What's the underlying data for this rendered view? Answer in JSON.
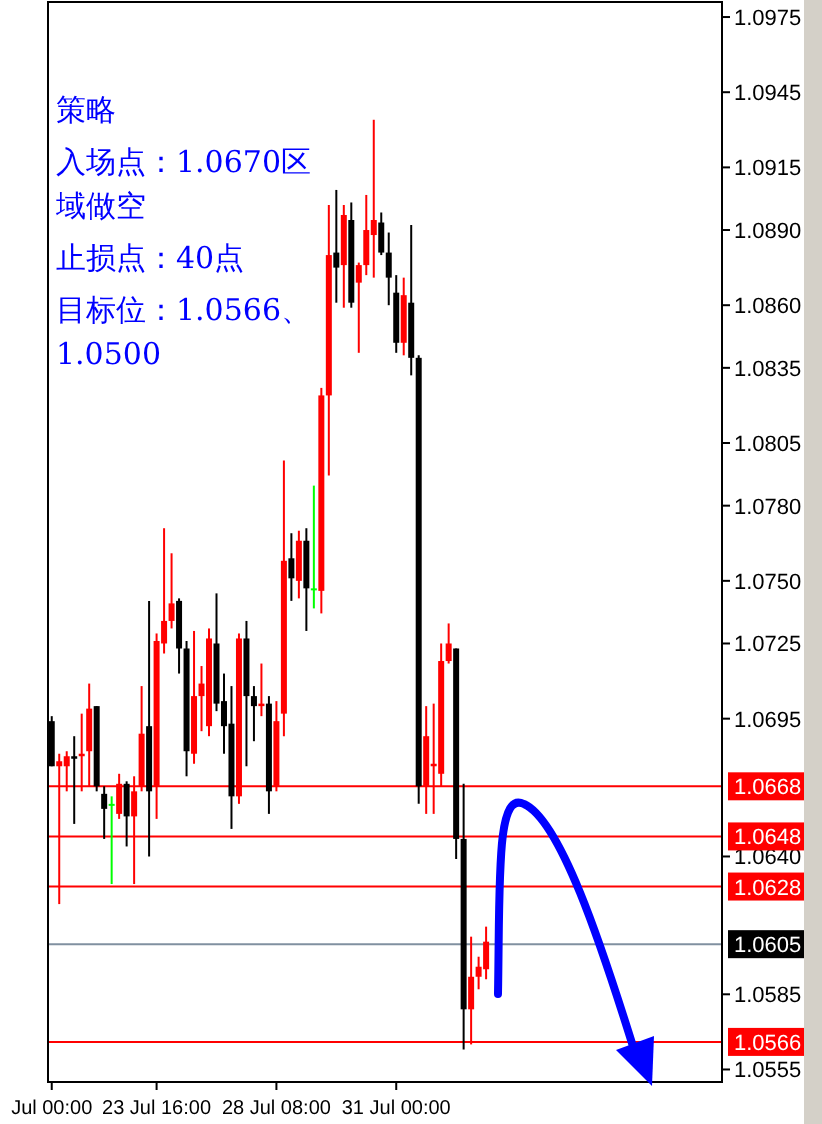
{
  "chart_data": {
    "type": "candlestick",
    "categories": [
      "Jul 00:00",
      null,
      null,
      null,
      null,
      null,
      null,
      null,
      null,
      null,
      null,
      null,
      null,
      null,
      "23 Jul 16:00",
      null,
      null,
      null,
      null,
      null,
      null,
      null,
      null,
      null,
      null,
      null,
      null,
      null,
      null,
      null,
      "28 Jul 08:00",
      null,
      null,
      null,
      null,
      null,
      null,
      null,
      null,
      null,
      null,
      null,
      null,
      null,
      null,
      null,
      "31 Jul 00:00",
      null,
      null,
      null,
      null,
      null,
      null,
      null,
      null,
      null,
      null,
      null,
      null,
      null,
      null,
      null,
      null,
      null,
      null,
      null,
      null,
      null,
      null,
      null,
      null,
      null,
      null,
      null,
      null,
      null,
      null,
      null,
      null,
      null,
      null,
      null,
      null,
      null,
      null,
      null,
      null,
      null,
      null,
      null
    ],
    "ohlc": [
      [
        1.0694,
        1.0696,
        1.0676,
        1.0676
      ],
      [
        1.0676,
        1.0681,
        1.0621,
        1.0678
      ],
      [
        1.0676,
        1.0682,
        1.0666,
        1.068
      ],
      [
        1.068,
        1.0688,
        1.0653,
        1.0679
      ],
      [
        1.068,
        1.0697,
        1.0666,
        1.0681
      ],
      [
        1.0682,
        1.0709,
        1.0668,
        1.0699
      ],
      [
        1.07,
        1.07,
        1.0666,
        1.0668
      ],
      [
        1.0665,
        1.0668,
        1.0647,
        1.0659
      ],
      [
        1.0661,
        1.0664,
        1.0629,
        1.0661
      ],
      [
        1.0657,
        1.0673,
        1.0655,
        1.0669
      ],
      [
        1.0669,
        1.067,
        1.0644,
        1.0656
      ],
      [
        1.0656,
        1.0672,
        1.0629,
        1.0666
      ],
      [
        1.0668,
        1.0708,
        1.0666,
        1.0689
      ],
      [
        1.0692,
        1.0742,
        1.064,
        1.0666
      ],
      [
        1.0668,
        1.0729,
        1.0655,
        1.0726
      ],
      [
        1.0725,
        1.0771,
        1.0721,
        1.0734
      ],
      [
        1.0734,
        1.0761,
        1.0731,
        1.0741
      ],
      [
        1.0742,
        1.0743,
        1.0713,
        1.0723
      ],
      [
        1.0723,
        1.0726,
        1.0672,
        1.0682
      ],
      [
        1.0681,
        1.073,
        1.0677,
        1.0704
      ],
      [
        1.0704,
        1.0716,
        1.069,
        1.0709
      ],
      [
        1.0692,
        1.0731,
        1.0688,
        1.0727
      ],
      [
        1.0725,
        1.0745,
        1.0698,
        1.0701
      ],
      [
        1.0702,
        1.0713,
        1.0681,
        1.0692
      ],
      [
        1.0693,
        1.0708,
        1.0651,
        1.0664
      ],
      [
        1.0664,
        1.0729,
        1.0661,
        1.0727
      ],
      [
        1.0727,
        1.0734,
        1.0676,
        1.0704
      ],
      [
        1.0704,
        1.0708,
        1.0686,
        1.07
      ],
      [
        1.07,
        1.0717,
        1.0696,
        1.0701
      ],
      [
        1.0701,
        1.0704,
        1.0657,
        1.0666
      ],
      [
        1.0668,
        1.0702,
        1.0666,
        1.0694
      ],
      [
        1.0697,
        1.0798,
        1.0688,
        1.0758
      ],
      [
        1.0759,
        1.0769,
        1.0742,
        1.0751
      ],
      [
        1.075,
        1.077,
        1.0743,
        1.0766
      ],
      [
        1.0766,
        1.0771,
        1.073,
        1.0747
      ],
      [
        1.0747,
        1.0788,
        1.0739,
        1.0747
      ],
      [
        1.0746,
        1.0827,
        1.0737,
        1.0824
      ],
      [
        1.0824,
        1.09,
        1.0792,
        1.088
      ],
      [
        1.0881,
        1.0906,
        1.0861,
        1.0875
      ],
      [
        1.0876,
        1.09,
        1.0859,
        1.0896
      ],
      [
        1.0894,
        1.0901,
        1.0859,
        1.0861
      ],
      [
        1.0869,
        1.0877,
        1.0841,
        1.0876
      ],
      [
        1.0876,
        1.0904,
        1.0872,
        1.089
      ],
      [
        1.0888,
        1.0934,
        1.0871,
        1.0894
      ],
      [
        1.0893,
        1.0897,
        1.088,
        1.0881
      ],
      [
        1.0881,
        1.0889,
        1.086,
        1.0871
      ],
      [
        1.0865,
        1.0872,
        1.0841,
        1.0845
      ],
      [
        1.0845,
        1.0871,
        1.084,
        1.0864
      ],
      [
        1.0861,
        1.0892,
        1.0832,
        1.0839
      ],
      [
        1.0839,
        1.084,
        1.0661,
        1.0668
      ],
      [
        1.0668,
        1.07,
        1.0657,
        1.0688
      ],
      [
        1.0676,
        1.0701,
        1.0657,
        1.0677
      ],
      [
        1.0673,
        1.0725,
        1.0668,
        1.0718
      ],
      [
        1.0718,
        1.0733,
        1.0717,
        1.0725
      ],
      [
        1.0723,
        1.0723,
        1.0639,
        1.0647
      ],
      [
        1.0647,
        1.0669,
        1.0563,
        1.0579
      ],
      [
        1.0579,
        1.0608,
        1.0565,
        1.0592
      ],
      [
        1.0592,
        1.06,
        1.0587,
        1.0596
      ],
      [
        1.0595,
        1.0612,
        1.0591,
        1.0606
      ],
      null,
      null,
      null,
      null,
      null,
      null,
      null,
      null,
      null,
      null,
      null,
      null,
      null,
      null,
      null,
      null,
      null,
      null,
      null,
      null,
      null,
      null,
      null,
      null,
      null,
      null,
      null,
      null,
      null,
      null,
      null
    ],
    "colors": [
      "#000000",
      "#ff0000",
      "#ff0000",
      "#000000",
      "#ff0000",
      "#ff0000",
      "#000000",
      "#000000",
      "#00ff00",
      "#ff0000",
      "#000000",
      "#ff0000",
      "#ff0000",
      "#000000",
      "#ff0000",
      "#ff0000",
      "#ff0000",
      "#000000",
      "#000000",
      "#ff0000",
      "#ff0000",
      "#ff0000",
      "#000000",
      "#000000",
      "#000000",
      "#ff0000",
      "#000000",
      "#000000",
      "#ff0000",
      "#000000",
      "#ff0000",
      "#ff0000",
      "#000000",
      "#ff0000",
      "#000000",
      "#00ff00",
      "#ff0000",
      "#ff0000",
      "#000000",
      "#ff0000",
      "#000000",
      "#ff0000",
      "#ff0000",
      "#ff0000",
      "#000000",
      "#000000",
      "#000000",
      "#ff0000",
      "#000000",
      "#000000",
      "#ff0000",
      "#ff0000",
      "#ff0000",
      "#ff0000",
      "#000000",
      "#000000",
      "#ff0000",
      "#ff0000",
      "#ff0000",
      null,
      null,
      null,
      null,
      null,
      null,
      null,
      null,
      null,
      null,
      null,
      null,
      null,
      null,
      null,
      null,
      null,
      null,
      null,
      null,
      null,
      null,
      null,
      null,
      null,
      null,
      null,
      null,
      null,
      null,
      null
    ],
    "ylim": [
      1.055,
      1.0981
    ],
    "yticks": [
      1.0975,
      1.0945,
      1.0915,
      {
        "value": 1.089,
        "label": "1.0890"
      },
      {
        "value": 1.086,
        "label": "1.0860"
      },
      1.0835,
      1.0805,
      {
        "value": 1.078,
        "label": "1.0780"
      },
      {
        "value": 1.075,
        "label": "1.0750"
      },
      1.0725,
      1.0695,
      {
        "value": 1.064,
        "label": "1.0640"
      },
      1.0585,
      1.0555
    ],
    "ref_lines": [
      {
        "axis": "y",
        "value": 1.0668,
        "label": "1.0668",
        "color": "#ff0000"
      },
      {
        "axis": "y",
        "value": 1.0648,
        "label": "1.0648",
        "color": "#ff0000"
      },
      {
        "axis": "y",
        "value": 1.0628,
        "label": "1.0628",
        "color": "#ff0000"
      },
      {
        "axis": "y",
        "value": 1.0605,
        "label": "1.0605",
        "color": "#8090a0"
      },
      {
        "axis": "y",
        "value": 1.0566,
        "label": "1.0566",
        "color": "#ff0000"
      }
    ],
    "annotations": [
      "策略",
      "入场点：1.0670区域做空",
      "止损点：40点",
      "目标位：1.0566、1.0500"
    ]
  }
}
